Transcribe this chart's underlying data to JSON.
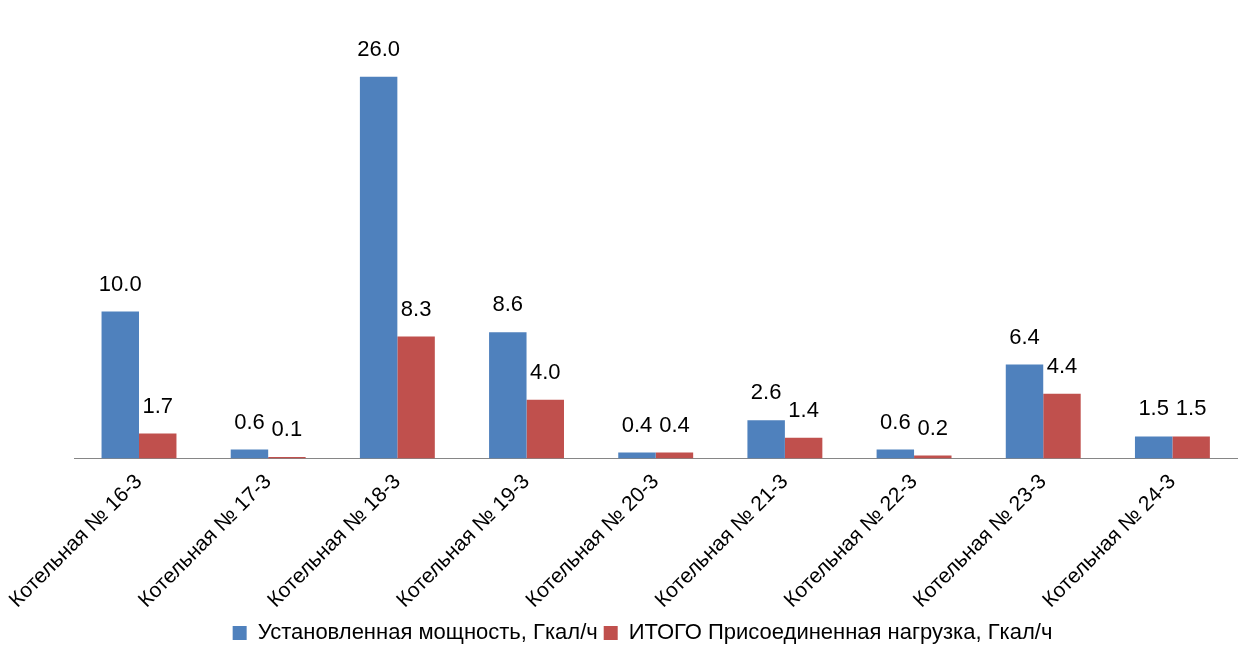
{
  "chart_data": {
    "type": "bar",
    "categories": [
      "Котельная № 16-3",
      "Котельная № 17-3",
      "Котельная № 18-3",
      "Котельная № 19-3",
      "Котельная № 20-3",
      "Котельная № 21-3",
      "Котельная № 22-3",
      "Котельная № 23-3",
      "Котельная № 24-3"
    ],
    "series": [
      {
        "name": "Установленная мощность, Гкал/ч",
        "color": "#4f81bd",
        "values": [
          10.0,
          0.6,
          26.0,
          8.6,
          0.4,
          2.6,
          0.6,
          6.4,
          1.5
        ],
        "value_labels": [
          "10.0",
          "0.6",
          "26.0",
          "8.6",
          "0.4",
          "2.6",
          "0.6",
          "6.4",
          "1.5"
        ]
      },
      {
        "name": "ИТОГО Присоединенная нагрузка, Гкал/ч",
        "color": "#c0504d",
        "values": [
          1.7,
          0.1,
          8.3,
          4.0,
          0.4,
          1.4,
          0.2,
          4.4,
          1.5
        ],
        "value_labels": [
          "1.7",
          "0.1",
          "8.3",
          "4.0",
          "0.4",
          "1.4",
          "0.2",
          "4.4",
          "1.5"
        ]
      }
    ],
    "legend": "bottom",
    "grid": false
  }
}
